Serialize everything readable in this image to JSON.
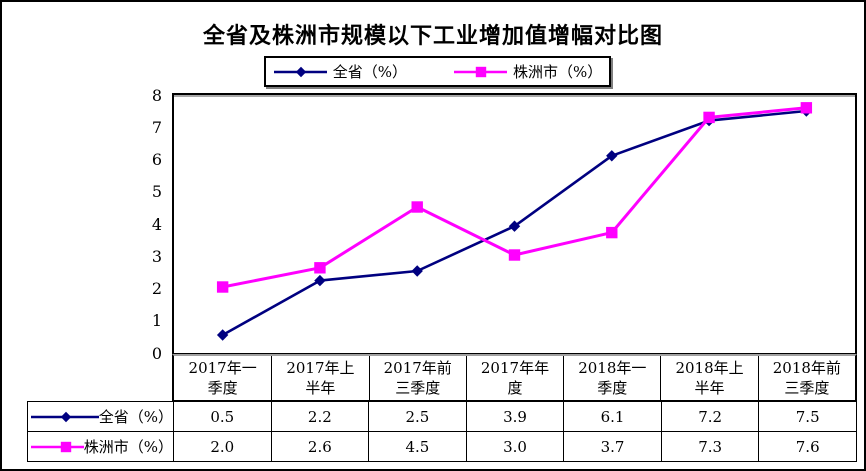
{
  "chart_data": {
    "type": "line",
    "title": "全省及株洲市规模以下工业增加值增幅对比图",
    "categories": [
      "2017年一季度",
      "2017年上半年",
      "2017年前三季度",
      "2017年年度",
      "2018年一季度",
      "2018年上半年",
      "2018年前三季度"
    ],
    "category_lines": [
      [
        "2017年一",
        "季度"
      ],
      [
        "2017年上",
        "半年"
      ],
      [
        "2017年前",
        "三季度"
      ],
      [
        "2017年年",
        "度"
      ],
      [
        "2018年一",
        "季度"
      ],
      [
        "2018年上",
        "半年"
      ],
      [
        "2018年前",
        "三季度"
      ]
    ],
    "series": [
      {
        "name": "全省（%）",
        "values": [
          0.5,
          2.2,
          2.5,
          3.9,
          6.1,
          7.2,
          7.5
        ],
        "color": "#000080",
        "marker": "diamond"
      },
      {
        "name": "株洲市（%）",
        "values": [
          2.0,
          2.6,
          4.5,
          3.0,
          3.7,
          7.3,
          7.6
        ],
        "color": "#FF00FF",
        "marker": "square"
      }
    ],
    "ylim": [
      0,
      8
    ],
    "ytick_step": 1,
    "grid": false,
    "legend_position": "top",
    "value_format_decimals": 1
  }
}
